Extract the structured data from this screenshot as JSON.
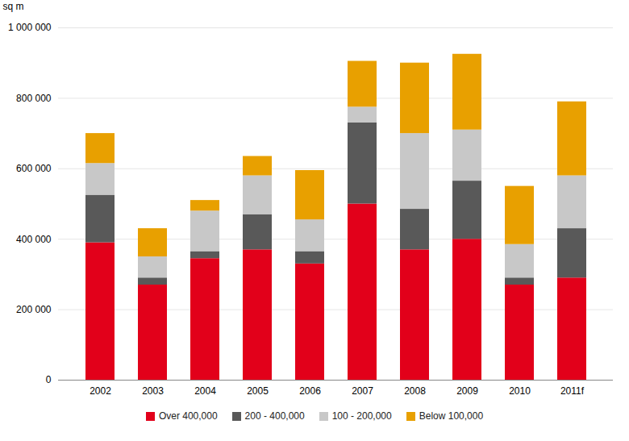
{
  "chart_data": {
    "type": "bar",
    "stacked": true,
    "ylabel": "sq m",
    "categories": [
      "2002",
      "2003",
      "2004",
      "2005",
      "2006",
      "2007",
      "2008",
      "2009",
      "2010",
      "2011f"
    ],
    "series": [
      {
        "name": "Over 400,000",
        "color": "#e2001a",
        "values": [
          390000,
          270000,
          345000,
          370000,
          330000,
          500000,
          370000,
          400000,
          270000,
          290000
        ]
      },
      {
        "name": "200 - 400,000",
        "color": "#595959",
        "values": [
          135000,
          20000,
          20000,
          100000,
          35000,
          230000,
          115000,
          165000,
          20000,
          140000
        ]
      },
      {
        "name": "100 - 200,000",
        "color": "#c8c8c8",
        "values": [
          90000,
          60000,
          115000,
          110000,
          90000,
          45000,
          215000,
          145000,
          95000,
          150000
        ]
      },
      {
        "name": "Below 100,000",
        "color": "#e8a000",
        "values": [
          85000,
          80000,
          30000,
          55000,
          140000,
          130000,
          200000,
          215000,
          165000,
          210000
        ]
      }
    ],
    "ylim": [
      0,
      1000000
    ],
    "yticks": [
      0,
      {
        "value": 200000,
        "label": "200 000"
      },
      {
        "value": 400000,
        "label": "400 000"
      },
      {
        "value": 600000,
        "label": "600 000"
      },
      {
        "value": 800000,
        "label": "800 000"
      },
      {
        "value": 1000000,
        "label": "1 000 000"
      }
    ],
    "grid": true,
    "legend": "bottom"
  }
}
